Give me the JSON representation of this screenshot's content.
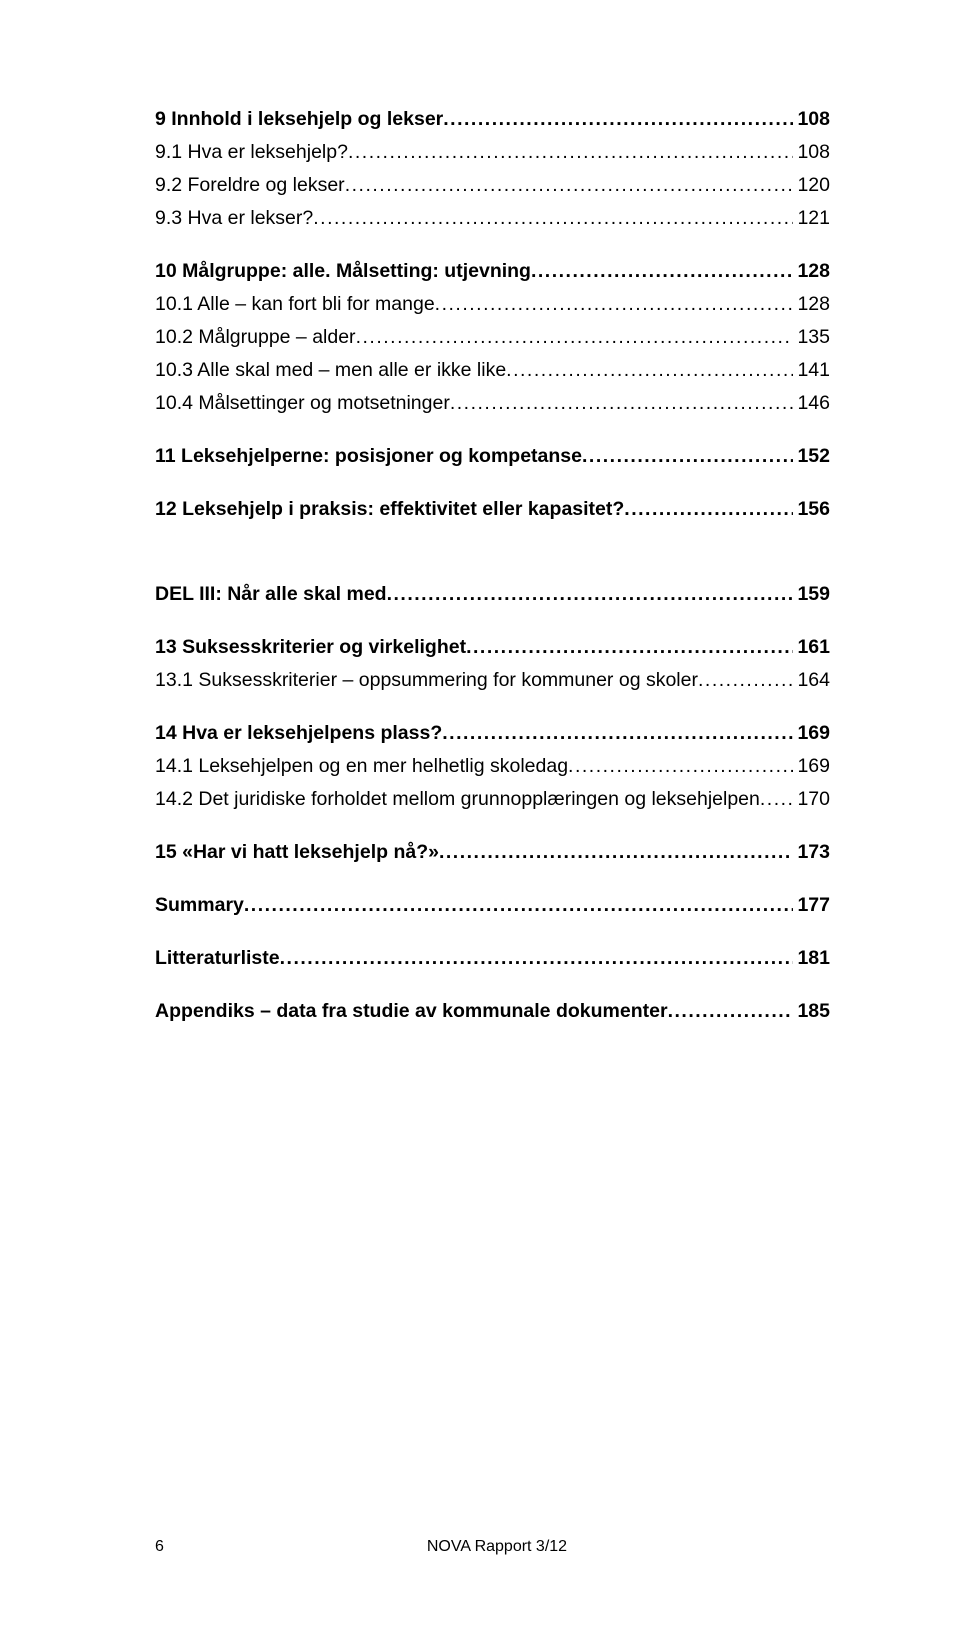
{
  "font": {
    "family": "Arial",
    "body_size_pt": 15,
    "footer_size_pt": 12
  },
  "colors": {
    "text": "#000000",
    "background": "#ffffff"
  },
  "toc": [
    {
      "type": "h1",
      "label": "9  Innhold i leksehjelp og lekser",
      "page": "108"
    },
    {
      "type": "h2",
      "label": "9.1  Hva er leksehjelp?",
      "page": "108"
    },
    {
      "type": "h2",
      "label": "9.2  Foreldre og lekser",
      "page": "120"
    },
    {
      "type": "h2",
      "label": "9.3  Hva er lekser?",
      "page": "121"
    },
    {
      "type": "gap"
    },
    {
      "type": "h1",
      "label": "10  Målgruppe: alle. Målsetting: utjevning",
      "page": "128"
    },
    {
      "type": "h2",
      "label": "10.1  Alle – kan fort bli for mange",
      "page": "128"
    },
    {
      "type": "h2",
      "label": "10.2  Målgruppe – alder",
      "page": "135"
    },
    {
      "type": "h2",
      "label": "10.3  Alle skal med – men alle er ikke like",
      "page": "141"
    },
    {
      "type": "h2",
      "label": "10.4  Målsettinger og motsetninger",
      "page": "146"
    },
    {
      "type": "gap"
    },
    {
      "type": "h1",
      "label": "11  Leksehjelperne: posisjoner og kompetanse",
      "page": "152"
    },
    {
      "type": "gap"
    },
    {
      "type": "h1",
      "label": "12  Leksehjelp i praksis: effektivitet eller kapasitet?",
      "page": "156"
    },
    {
      "type": "biggap"
    },
    {
      "type": "h1",
      "label": "DEL III: Når alle skal med",
      "page": "159"
    },
    {
      "type": "gap"
    },
    {
      "type": "h1",
      "label": "13  Suksesskriterier og virkelighet",
      "page": "161"
    },
    {
      "type": "h2",
      "label": "13.1  Suksesskriterier – oppsummering for kommuner og skoler",
      "page": "164"
    },
    {
      "type": "gap"
    },
    {
      "type": "h1",
      "label": "14  Hva er leksehjelpens plass?",
      "page": "169"
    },
    {
      "type": "h2",
      "label": "14.1  Leksehjelpen og en mer helhetlig skoledag",
      "page": "169"
    },
    {
      "type": "h2",
      "label": "14.2  Det juridiske forholdet mellom grunnopplæringen og leksehjelpen",
      "page": "170"
    },
    {
      "type": "gap"
    },
    {
      "type": "h1",
      "label": "15  «Har vi hatt leksehjelp nå?»",
      "page": "173"
    },
    {
      "type": "gap"
    },
    {
      "type": "h1",
      "label": "Summary",
      "page": "177"
    },
    {
      "type": "gap"
    },
    {
      "type": "h1",
      "label": "Litteraturliste",
      "page": "181"
    },
    {
      "type": "gap"
    },
    {
      "type": "h1",
      "label": "Appendiks – data fra studie av kommunale dokumenter",
      "page": "185"
    }
  ],
  "footer": {
    "page_number": "6",
    "center_text": "NOVA Rapport 3/12"
  }
}
